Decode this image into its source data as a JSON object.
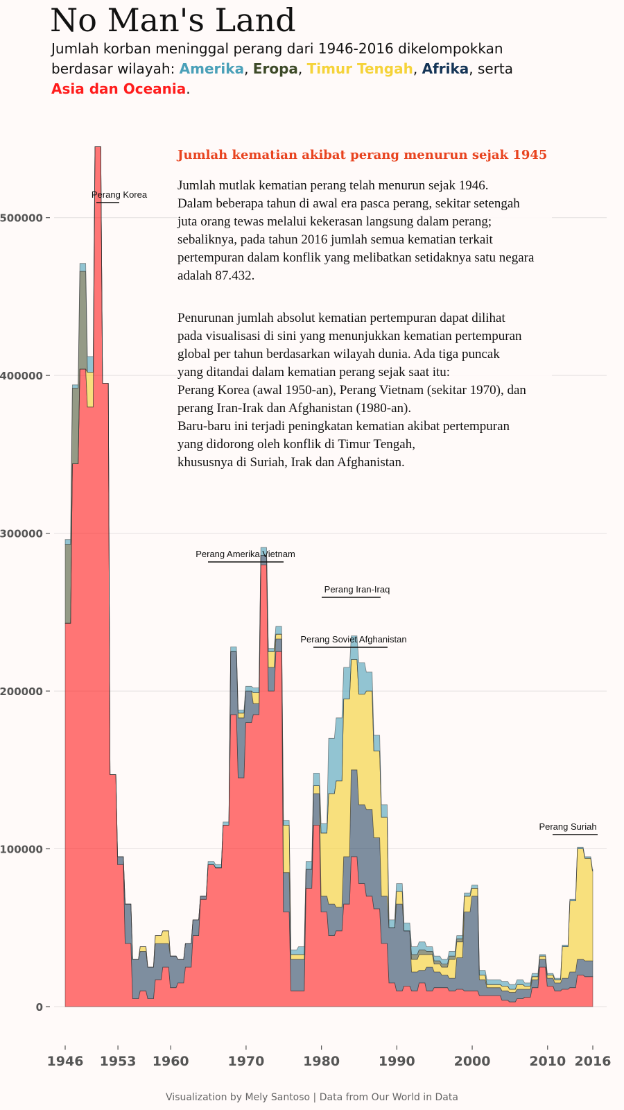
{
  "title": "No Man's Land",
  "subtitle": {
    "line1": "Jumlah korban meninggal perang dari 1946-2016 dikelompokkan",
    "line2_start": "berdasar wilayah: ",
    "amerika": "Amerika",
    "sep1": ", ",
    "eropa": "Eropa",
    "sep2": ", ",
    "timur_tengah": "Timur Tengah",
    "sep3": ", ",
    "afrika": "Afrika",
    "sep4": ", serta",
    "asia": "Asia dan Oceania",
    "end": "."
  },
  "note": {
    "heading": "Jumlah kematian akibat perang menurun sejak 1945",
    "para1": "Jumlah mutlak kematian perang telah menurun sejak 1946.\nDalam beberapa tahun di awal era pasca perang, sekitar setengah\njuta orang tewas melalui kekerasan langsung dalam perang;\nsebaliknya, pada tahun 2016 jumlah semua kematian terkait\npertempuran dalam konflik yang melibatkan setidaknya satu negara\nadalah 87.432.",
    "para2": "Penurunan jumlah absolut kematian pertempuran dapat dilihat\npada visualisasi di sini yang menunjukkan kematian pertempuran\nglobal per tahun berdasarkan wilayah dunia. Ada tiga puncak\nyang ditandai dalam kematian perang sejak saat itu:\nPerang Korea (awal 1950-an), Perang Vietnam (sekitar 1970), dan\nperang Iran-Irak dan Afghanistan (1980-an).\nBaru-baru ini terjadi peningkatan kematian akibat pertempuran\nyang didorong oleh konflik di Timur Tengah,\nkhususnya di Suriah, Irak dan Afghanistan."
  },
  "caption": "Visualization by Mely Santoso | Data from Our World in Data",
  "colors": {
    "amerika": "#4aa0b8",
    "eropa": "#3d4a28",
    "timur_tengah": "#f5d33a",
    "afrika": "#143456",
    "asia": "#ff1c1c",
    "grid": "#e4e0e0",
    "axis_text": "#555555"
  },
  "chart_data": {
    "type": "area",
    "stacked": true,
    "xlabel": "",
    "ylabel": "",
    "xlim": [
      1946,
      2016
    ],
    "ylim": [
      0,
      550000
    ],
    "x_ticks": [
      1946,
      1953,
      1960,
      1970,
      1980,
      1990,
      2000,
      2010,
      2016
    ],
    "y_ticks": [
      0,
      100000,
      200000,
      300000,
      400000,
      500000
    ],
    "grid": "horizontal",
    "x": [
      1946,
      1947,
      1948,
      1949,
      1950,
      1951,
      1952,
      1953,
      1954,
      1955,
      1956,
      1957,
      1958,
      1959,
      1960,
      1961,
      1962,
      1963,
      1964,
      1965,
      1966,
      1967,
      1968,
      1969,
      1970,
      1971,
      1972,
      1973,
      1974,
      1975,
      1976,
      1977,
      1978,
      1979,
      1980,
      1981,
      1982,
      1983,
      1984,
      1985,
      1986,
      1987,
      1988,
      1989,
      1990,
      1991,
      1992,
      1993,
      1994,
      1995,
      1996,
      1997,
      1998,
      1999,
      2000,
      2001,
      2002,
      2003,
      2004,
      2005,
      2006,
      2007,
      2008,
      2009,
      2010,
      2011,
      2012,
      2013,
      2014,
      2015,
      2016
    ],
    "series": [
      {
        "key": "asia",
        "name": "Asia dan Oceania",
        "values": [
          243000,
          344000,
          404000,
          380000,
          545000,
          395000,
          147000,
          90000,
          40000,
          5000,
          10000,
          5000,
          17000,
          25000,
          12000,
          15000,
          25000,
          45000,
          68000,
          90000,
          88000,
          115000,
          185000,
          145000,
          180000,
          185000,
          280000,
          200000,
          225000,
          60000,
          10000,
          10000,
          75000,
          115000,
          60000,
          45000,
          48000,
          65000,
          95000,
          78000,
          70000,
          62000,
          40000,
          15000,
          10000,
          13000,
          10000,
          15000,
          10000,
          12000,
          12000,
          10000,
          11000,
          10000,
          10000,
          7000,
          7000,
          7000,
          4000,
          3000,
          5000,
          6000,
          12000,
          25000,
          13000,
          10000,
          11000,
          12000,
          20000,
          19000,
          19000
        ]
      },
      {
        "key": "afrika",
        "name": "Afrika",
        "values": [
          0,
          0,
          0,
          0,
          0,
          0,
          0,
          5000,
          25000,
          25000,
          25000,
          20000,
          23000,
          15000,
          20000,
          15000,
          15000,
          10000,
          2000,
          0,
          0,
          0,
          40000,
          38000,
          20000,
          7000,
          6000,
          15000,
          8000,
          25000,
          20000,
          20000,
          12000,
          20000,
          10000,
          20000,
          15000,
          30000,
          55000,
          50000,
          55000,
          45000,
          30000,
          35000,
          55000,
          35000,
          12000,
          8000,
          15000,
          10000,
          8000,
          8000,
          20000,
          50000,
          60000,
          10000,
          5000,
          5000,
          6000,
          6000,
          6000,
          5000,
          5000,
          5000,
          5000,
          5000,
          7000,
          10000,
          10000,
          10000,
          10000
        ]
      },
      {
        "key": "timur_tengah",
        "name": "Timur Tengah",
        "values": [
          0,
          0,
          0,
          22000,
          0,
          0,
          0,
          0,
          0,
          0,
          3000,
          0,
          5000,
          8000,
          0,
          0,
          0,
          0,
          0,
          0,
          0,
          0,
          0,
          3000,
          0,
          7000,
          0,
          10000,
          3000,
          30000,
          3000,
          3000,
          0,
          5000,
          40000,
          70000,
          80000,
          100000,
          70000,
          70000,
          75000,
          55000,
          50000,
          0,
          8000,
          0,
          8000,
          10000,
          8000,
          5000,
          5000,
          12000,
          10000,
          10000,
          5000,
          3000,
          2000,
          2000,
          3000,
          2000,
          3000,
          2000,
          2000,
          2000,
          2000,
          2000,
          20000,
          45000,
          70000,
          65000,
          57000
        ]
      },
      {
        "key": "eropa",
        "name": "Eropa",
        "values": [
          50000,
          48000,
          62000,
          0,
          0,
          0,
          0,
          0,
          0,
          0,
          0,
          0,
          0,
          0,
          0,
          0,
          0,
          0,
          0,
          0,
          0,
          0,
          0,
          0,
          0,
          0,
          0,
          0,
          0,
          0,
          0,
          0,
          0,
          0,
          0,
          0,
          0,
          0,
          0,
          0,
          0,
          0,
          0,
          0,
          0,
          0,
          3000,
          3000,
          2000,
          2000,
          2000,
          2000,
          2000,
          0,
          0,
          0,
          0,
          0,
          0,
          0,
          0,
          0,
          0,
          0,
          0,
          0,
          0,
          0,
          0,
          0,
          0
        ]
      },
      {
        "key": "amerika",
        "name": "Amerika",
        "values": [
          3000,
          2000,
          5000,
          10000,
          0,
          0,
          0,
          0,
          0,
          0,
          0,
          0,
          0,
          0,
          0,
          0,
          0,
          0,
          0,
          2000,
          2000,
          2000,
          3000,
          2000,
          3000,
          3000,
          5000,
          2000,
          5000,
          3000,
          3000,
          5000,
          5000,
          8000,
          6000,
          35000,
          40000,
          20000,
          15000,
          20000,
          12000,
          10000,
          8000,
          5000,
          5000,
          5000,
          5000,
          5000,
          3000,
          3000,
          3000,
          3000,
          2000,
          2000,
          2000,
          3000,
          3000,
          3000,
          3000,
          3000,
          3000,
          2000,
          2000,
          1000,
          1000,
          1000,
          1000,
          1000,
          1000,
          1000,
          1000
        ]
      }
    ],
    "annotations": [
      {
        "label": "Perang Korea",
        "x_start": 1950,
        "x_end": 1950
      },
      {
        "label": "Perang Amerika Vietnam",
        "x_start": 1965,
        "x_end": 1975
      },
      {
        "label": "Perang Iran-Iraq",
        "x_start": 1980,
        "x_end": 1988
      },
      {
        "label": "Perang Soviet Afghanistan",
        "x_start": 1979,
        "x_end": 1989
      },
      {
        "label": "Perang Suriah",
        "x_start": 2011,
        "x_end": 2016
      }
    ]
  }
}
